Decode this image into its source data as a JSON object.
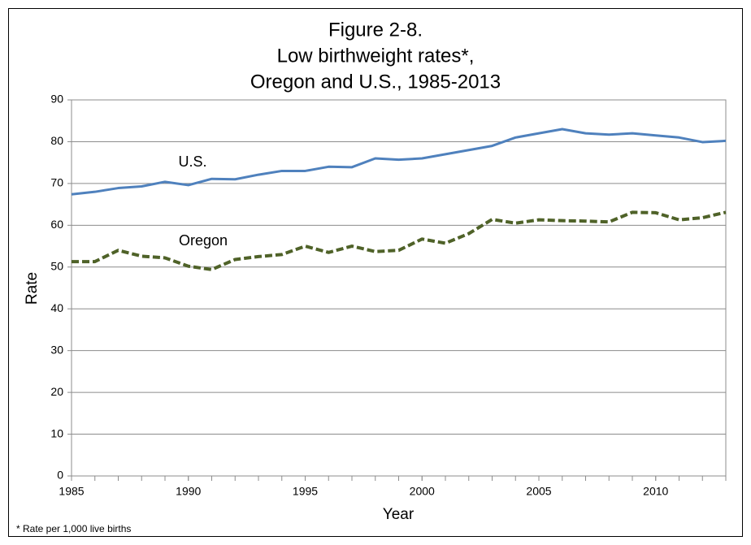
{
  "chart_data": {
    "type": "line",
    "title": [
      "Figure 2-8.",
      "Low birthweight rates*,",
      "Oregon and U.S., 1985-2013"
    ],
    "xlabel": "Year",
    "ylabel": "Rate",
    "footnote": "* Rate per 1,000 live births",
    "x": [
      1985,
      1986,
      1987,
      1988,
      1989,
      1990,
      1991,
      1992,
      1993,
      1994,
      1995,
      1996,
      1997,
      1998,
      1999,
      2000,
      2001,
      2002,
      2003,
      2004,
      2005,
      2006,
      2007,
      2008,
      2009,
      2010,
      2011,
      2012,
      2013
    ],
    "series": [
      {
        "name": "U.S.",
        "color": "#4f81bd",
        "dashed": false,
        "values": [
          67.4,
          68.0,
          68.9,
          69.3,
          70.4,
          69.6,
          71.1,
          71.0,
          72.1,
          73.0,
          73.0,
          74.0,
          73.9,
          76.0,
          75.7,
          76.0,
          77.0,
          78.0,
          79.0,
          81.0,
          82.0,
          83.0,
          82.0,
          81.7,
          82.0,
          81.5,
          81.0,
          79.9,
          80.2
        ]
      },
      {
        "name": "Oregon",
        "color": "#4f6228",
        "dashed": true,
        "values": [
          51.3,
          51.3,
          54.0,
          52.6,
          52.2,
          50.2,
          49.4,
          51.8,
          52.5,
          53.0,
          55.0,
          53.5,
          55.0,
          53.7,
          54.0,
          56.7,
          55.7,
          58.0,
          61.4,
          60.5,
          61.3,
          61.1,
          61.0,
          60.8,
          63.1,
          63.0,
          61.3,
          61.8,
          63.1
        ]
      }
    ],
    "xlim": [
      1985,
      2013
    ],
    "xticks": [
      1985,
      1990,
      1995,
      2000,
      2005,
      2010
    ],
    "ylim": [
      0,
      90
    ],
    "yticks": [
      0,
      10,
      20,
      30,
      40,
      50,
      60,
      70,
      80,
      90
    ],
    "grid": true
  }
}
